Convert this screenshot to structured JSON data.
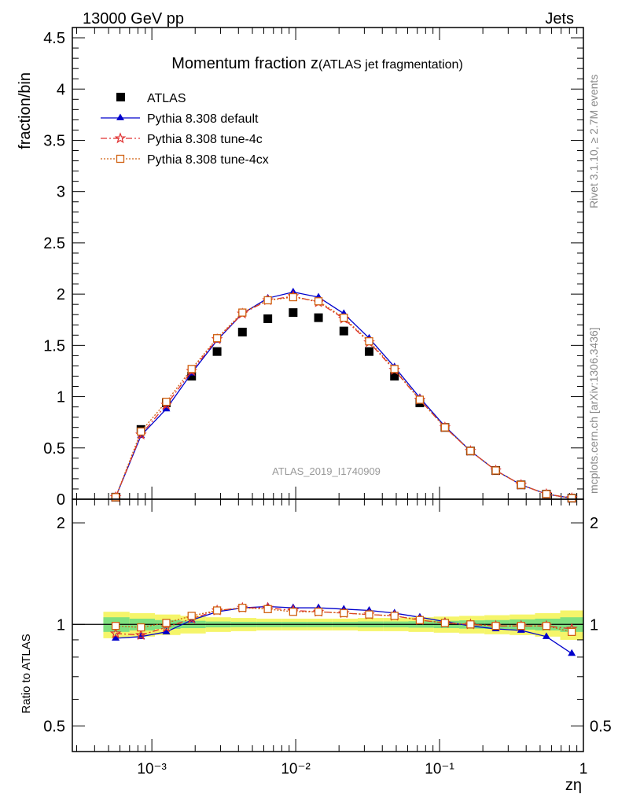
{
  "header": {
    "left": "13000 GeV pp",
    "right": "Jets"
  },
  "side_labels": {
    "rivet": "Rivet 3.1.10, ≥ 2.7M events",
    "mcplots": "mcplots.cern.ch [arXiv:1306.3436]"
  },
  "analysis_id": "ATLAS_2019_I1740909",
  "chart_data": [
    {
      "type": "scatter",
      "title_main": "Momentum fraction z",
      "title_sub": "(ATLAS jet fragmentation)",
      "ylabel": "fraction/bin",
      "xscale": "log",
      "xlim": [
        0.00028,
        1.0
      ],
      "ylim": [
        0,
        4.6
      ],
      "yticks": [
        0,
        0.5,
        1,
        1.5,
        2,
        2.5,
        3,
        3.5,
        4,
        4.5
      ],
      "ytick_labels": [
        "0",
        "0.5",
        "1",
        "1.5",
        "2",
        "2.5",
        "3",
        "3.5",
        "4",
        "4.5"
      ],
      "x": [
        0.00056,
        0.00084,
        0.00126,
        0.00189,
        0.00284,
        0.00426,
        0.0064,
        0.0096,
        0.0144,
        0.0216,
        0.0324,
        0.0486,
        0.0729,
        0.109,
        0.164,
        0.246,
        0.369,
        0.553,
        0.83
      ],
      "legend_position": "top-left",
      "series": [
        {
          "name": "ATLAS",
          "color": "#000000",
          "marker": "square",
          "line": "none",
          "values": [
            0.02,
            0.68,
            0.94,
            1.2,
            1.44,
            1.63,
            1.76,
            1.82,
            1.77,
            1.64,
            1.44,
            1.2,
            0.94,
            0.7,
            0.47,
            0.28,
            0.14,
            0.05,
            0.01
          ]
        },
        {
          "name": "Pythia 8.308 default",
          "color": "#0000cc",
          "marker": "triangle",
          "line": "solid",
          "values": [
            0.02,
            0.62,
            0.88,
            1.23,
            1.55,
            1.81,
            1.96,
            2.02,
            1.97,
            1.81,
            1.57,
            1.29,
            0.99,
            0.71,
            0.47,
            0.28,
            0.14,
            0.05,
            0.01
          ]
        },
        {
          "name": "Pythia 8.308 tune-4c",
          "color": "#e03030",
          "marker": "star",
          "line": "dashdot",
          "values": [
            0.02,
            0.63,
            0.92,
            1.25,
            1.56,
            1.81,
            1.94,
            1.98,
            1.92,
            1.76,
            1.53,
            1.26,
            0.97,
            0.7,
            0.47,
            0.28,
            0.14,
            0.05,
            0.01
          ]
        },
        {
          "name": "Pythia 8.308 tune-4cx",
          "color": "#d06010",
          "marker": "open-square",
          "line": "dotted",
          "values": [
            0.02,
            0.66,
            0.95,
            1.27,
            1.57,
            1.82,
            1.94,
            1.97,
            1.93,
            1.77,
            1.54,
            1.27,
            0.97,
            0.7,
            0.47,
            0.28,
            0.14,
            0.05,
            0.01
          ]
        }
      ]
    },
    {
      "type": "scatter",
      "ylabel": "Ratio to ATLAS",
      "xlabel": "zη",
      "xscale": "log",
      "yscale": "log",
      "xlim": [
        0.00028,
        1.0
      ],
      "ylim": [
        0.42,
        2.35
      ],
      "yticks": [
        0.5,
        1,
        2
      ],
      "ytick_labels": [
        "0.5",
        "1",
        "2"
      ],
      "xticks": [
        0.001,
        0.01,
        0.1,
        1
      ],
      "xtick_labels": [
        "10⁻³",
        "10⁻²",
        "10⁻¹",
        "1"
      ],
      "x": [
        0.00056,
        0.00084,
        0.00126,
        0.00189,
        0.00284,
        0.00426,
        0.0064,
        0.0096,
        0.0144,
        0.0216,
        0.0324,
        0.0486,
        0.0729,
        0.109,
        0.164,
        0.246,
        0.369,
        0.553,
        0.83
      ],
      "band_edges": [
        0.00046,
        0.0007,
        0.00105,
        0.00158,
        0.00237,
        0.00355,
        0.00533,
        0.008,
        0.012,
        0.018,
        0.027,
        0.0405,
        0.0608,
        0.0911,
        0.137,
        0.205,
        0.307,
        0.461,
        0.69,
        1.0
      ],
      "band_inner": [
        0.05,
        0.04,
        0.03,
        0.025,
        0.02,
        0.018,
        0.018,
        0.018,
        0.018,
        0.018,
        0.02,
        0.02,
        0.022,
        0.025,
        0.028,
        0.03,
        0.035,
        0.04,
        0.05
      ],
      "band_outer": [
        0.09,
        0.08,
        0.07,
        0.06,
        0.05,
        0.045,
        0.04,
        0.04,
        0.04,
        0.04,
        0.045,
        0.045,
        0.05,
        0.055,
        0.06,
        0.065,
        0.07,
        0.08,
        0.1
      ],
      "band_colors": {
        "inner": "#7fe07f",
        "outer": "#f5f56a"
      },
      "series": [
        {
          "name": "Pythia 8.308 default",
          "color": "#0000cc",
          "marker": "triangle",
          "line": "solid",
          "values": [
            0.91,
            0.92,
            0.95,
            1.03,
            1.09,
            1.12,
            1.13,
            1.12,
            1.12,
            1.11,
            1.1,
            1.08,
            1.05,
            1.02,
            0.99,
            0.97,
            0.96,
            0.92,
            0.82
          ]
        },
        {
          "name": "Pythia 8.308 tune-4c",
          "color": "#e03030",
          "marker": "star",
          "line": "dashdot",
          "values": [
            0.94,
            0.93,
            0.98,
            1.04,
            1.1,
            1.12,
            1.12,
            1.1,
            1.09,
            1.08,
            1.07,
            1.06,
            1.03,
            1.01,
            1.0,
            0.99,
            0.99,
            0.99,
            0.97
          ]
        },
        {
          "name": "Pythia 8.308 tune-4cx",
          "color": "#d06010",
          "marker": "open-square",
          "line": "dotted",
          "values": [
            0.99,
            0.98,
            1.01,
            1.06,
            1.1,
            1.12,
            1.11,
            1.09,
            1.09,
            1.08,
            1.07,
            1.06,
            1.03,
            1.01,
            1.0,
            0.99,
            0.99,
            0.99,
            0.95
          ]
        }
      ]
    }
  ]
}
